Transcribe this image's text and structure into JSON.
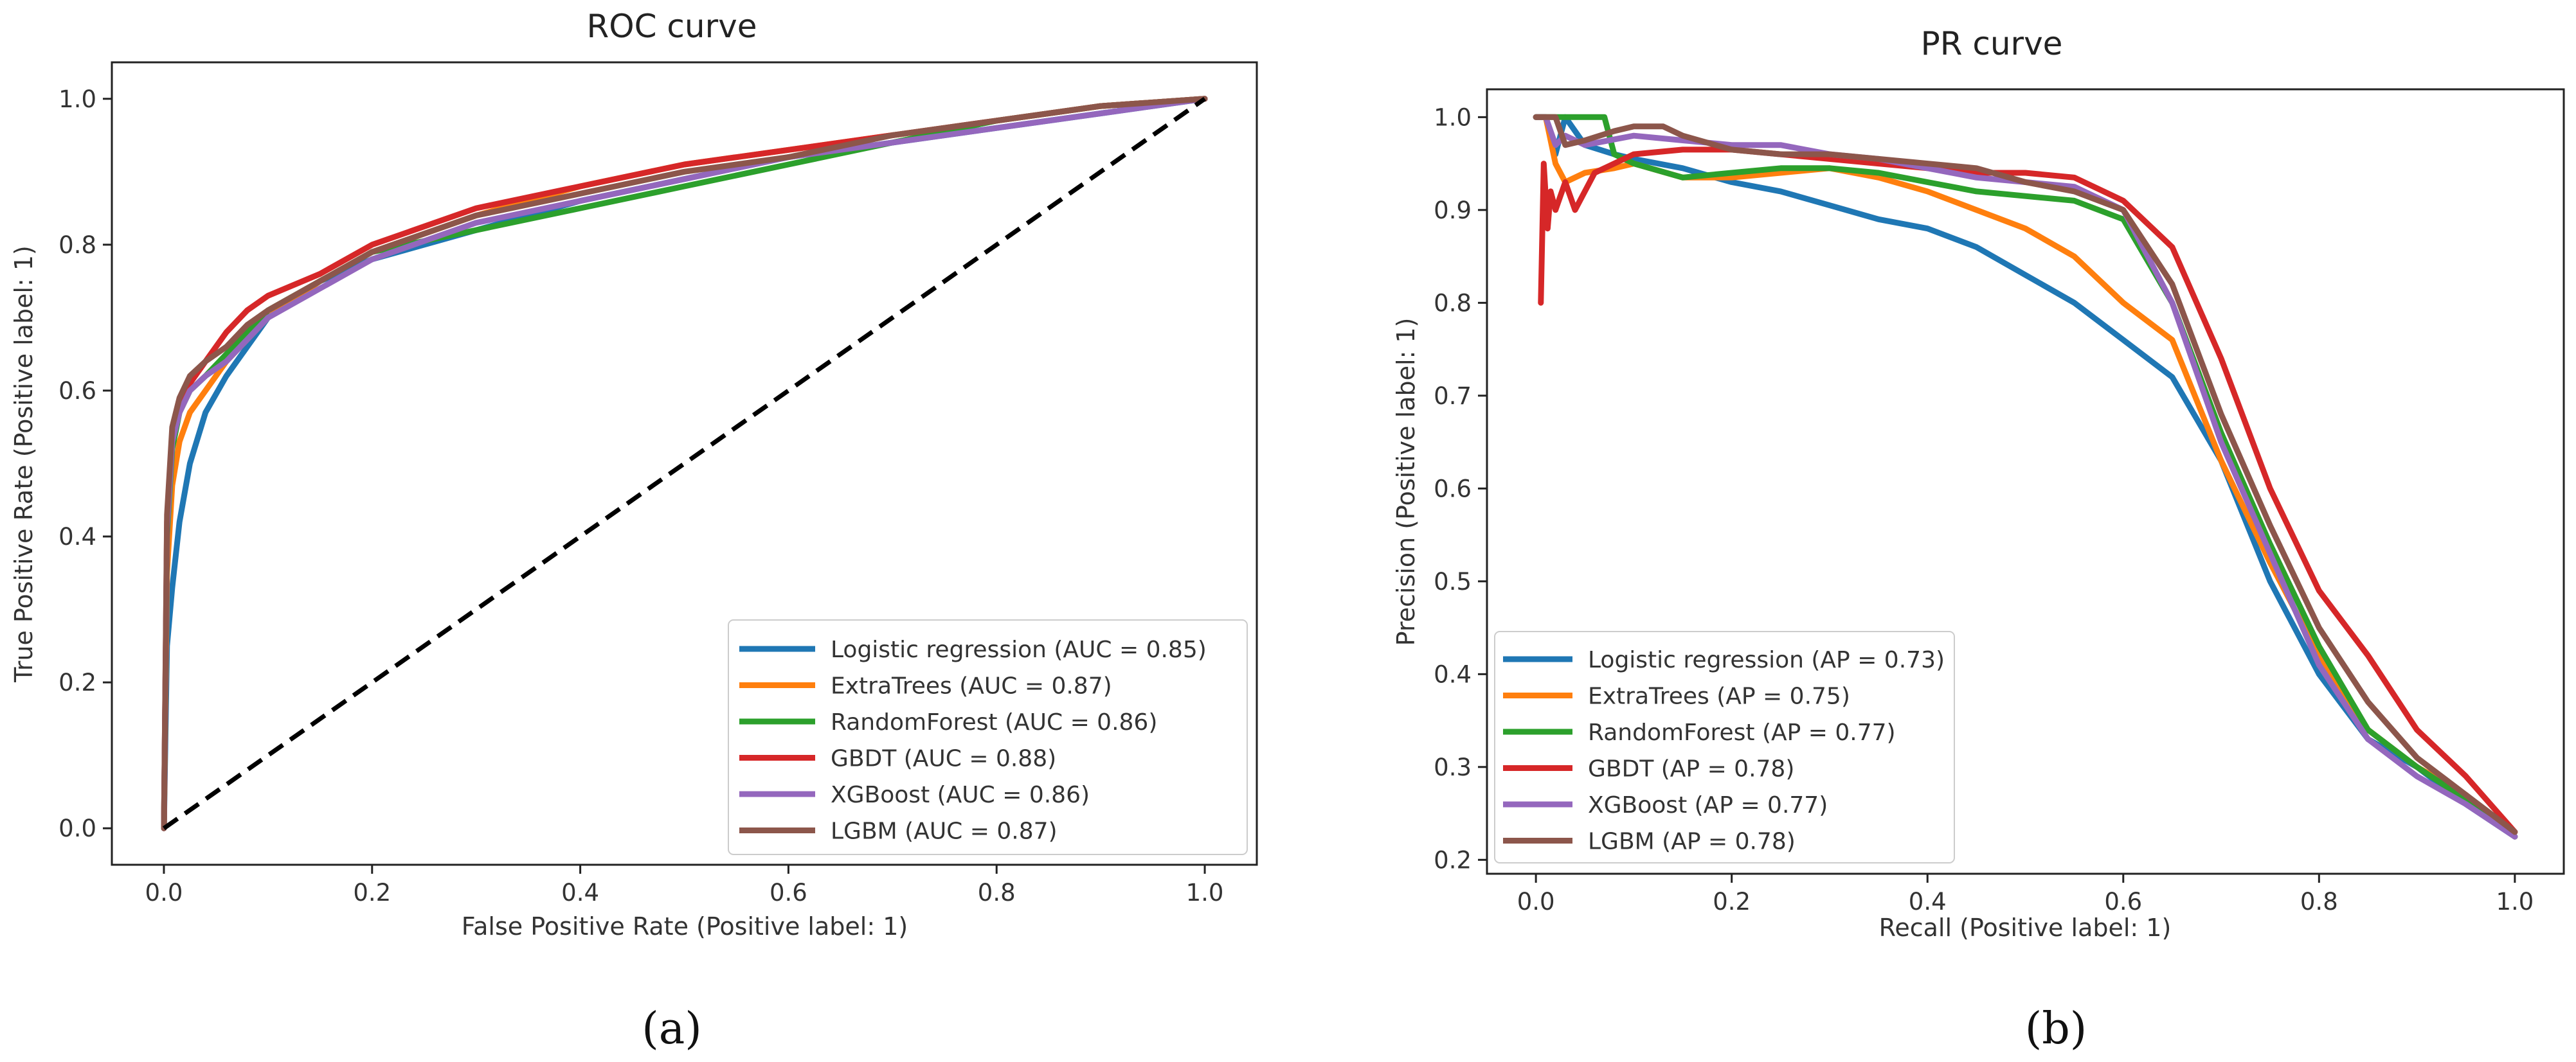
{
  "chart_data": [
    {
      "id": "roc",
      "type": "line",
      "title": "ROC curve",
      "xlabel": "False Positive Rate (Positive label: 1)",
      "ylabel": "True Positive Rate (Positive label: 1)",
      "xlim": [
        -0.05,
        1.05
      ],
      "ylim": [
        -0.05,
        1.05
      ],
      "xticks": [
        0.0,
        0.2,
        0.4,
        0.6,
        0.8,
        1.0
      ],
      "yticks": [
        0.0,
        0.2,
        0.4,
        0.6,
        0.8,
        1.0
      ],
      "xtick_labels": [
        "0.0",
        "0.2",
        "0.4",
        "0.6",
        "0.8",
        "1.0"
      ],
      "ytick_labels": [
        "0.0",
        "0.2",
        "0.4",
        "0.6",
        "0.8",
        "1.0"
      ],
      "grid": false,
      "legend_position": "lower-right",
      "subfigure_label": "(a)",
      "reference_line": {
        "x": [
          0,
          1
        ],
        "y": [
          0,
          1
        ],
        "style": "dashed",
        "color": "#000000"
      },
      "series": [
        {
          "name": "Logistic regression (AUC = 0.85)",
          "color": "#1f77b4",
          "x": [
            0,
            0.003,
            0.008,
            0.015,
            0.025,
            0.04,
            0.06,
            0.08,
            0.1,
            0.15,
            0.2,
            0.3,
            0.4,
            0.5,
            0.6,
            0.7,
            0.8,
            0.9,
            1.0
          ],
          "y": [
            0,
            0.25,
            0.33,
            0.42,
            0.5,
            0.57,
            0.62,
            0.66,
            0.7,
            0.75,
            0.78,
            0.82,
            0.86,
            0.89,
            0.92,
            0.94,
            0.96,
            0.98,
            1.0
          ]
        },
        {
          "name": "ExtraTrees (AUC = 0.87)",
          "color": "#ff7f0e",
          "x": [
            0,
            0.003,
            0.008,
            0.015,
            0.025,
            0.04,
            0.06,
            0.08,
            0.1,
            0.15,
            0.2,
            0.3,
            0.4,
            0.5,
            0.6,
            0.7,
            0.8,
            0.9,
            1.0
          ],
          "y": [
            0,
            0.35,
            0.47,
            0.53,
            0.57,
            0.6,
            0.64,
            0.67,
            0.7,
            0.75,
            0.79,
            0.84,
            0.88,
            0.91,
            0.93,
            0.95,
            0.97,
            0.99,
            1.0
          ]
        },
        {
          "name": "RandomForest (AUC = 0.86)",
          "color": "#2ca02c",
          "x": [
            0,
            0.003,
            0.008,
            0.015,
            0.025,
            0.04,
            0.06,
            0.08,
            0.1,
            0.15,
            0.2,
            0.3,
            0.4,
            0.5,
            0.6,
            0.7,
            0.8,
            0.9,
            1.0
          ],
          "y": [
            0,
            0.4,
            0.52,
            0.57,
            0.6,
            0.62,
            0.65,
            0.68,
            0.71,
            0.75,
            0.79,
            0.82,
            0.85,
            0.88,
            0.91,
            0.94,
            0.97,
            0.99,
            1.0
          ]
        },
        {
          "name": "GBDT (AUC = 0.88)",
          "color": "#d62728",
          "x": [
            0,
            0.003,
            0.008,
            0.015,
            0.025,
            0.04,
            0.06,
            0.08,
            0.1,
            0.15,
            0.2,
            0.3,
            0.4,
            0.5,
            0.6,
            0.7,
            0.8,
            0.9,
            1.0
          ],
          "y": [
            0,
            0.42,
            0.54,
            0.58,
            0.61,
            0.64,
            0.68,
            0.71,
            0.73,
            0.76,
            0.8,
            0.85,
            0.88,
            0.91,
            0.93,
            0.95,
            0.97,
            0.99,
            1.0
          ]
        },
        {
          "name": "XGBoost (AUC = 0.86)",
          "color": "#9467bd",
          "x": [
            0,
            0.003,
            0.008,
            0.015,
            0.025,
            0.04,
            0.06,
            0.08,
            0.1,
            0.15,
            0.2,
            0.3,
            0.4,
            0.5,
            0.6,
            0.7,
            0.8,
            0.9,
            1.0
          ],
          "y": [
            0,
            0.41,
            0.53,
            0.57,
            0.6,
            0.62,
            0.64,
            0.67,
            0.7,
            0.74,
            0.78,
            0.83,
            0.86,
            0.89,
            0.92,
            0.94,
            0.96,
            0.98,
            1.0
          ]
        },
        {
          "name": "LGBM (AUC = 0.87)",
          "color": "#8c564b",
          "x": [
            0,
            0.003,
            0.008,
            0.015,
            0.025,
            0.04,
            0.06,
            0.08,
            0.1,
            0.15,
            0.2,
            0.3,
            0.4,
            0.5,
            0.6,
            0.7,
            0.8,
            0.9,
            1.0
          ],
          "y": [
            0,
            0.43,
            0.55,
            0.59,
            0.62,
            0.64,
            0.66,
            0.69,
            0.71,
            0.75,
            0.79,
            0.84,
            0.87,
            0.9,
            0.92,
            0.95,
            0.97,
            0.99,
            1.0
          ]
        }
      ]
    },
    {
      "id": "pr",
      "type": "line",
      "title": "PR curve",
      "xlabel": "Recall (Positive label: 1)",
      "ylabel": "Precision (Positive label: 1)",
      "xlim": [
        -0.05,
        1.05
      ],
      "ylim": [
        0.185,
        1.03
      ],
      "xticks": [
        0.0,
        0.2,
        0.4,
        0.6,
        0.8,
        1.0
      ],
      "yticks": [
        0.2,
        0.3,
        0.4,
        0.5,
        0.6,
        0.7,
        0.8,
        0.9,
        1.0
      ],
      "xtick_labels": [
        "0.0",
        "0.2",
        "0.4",
        "0.6",
        "0.8",
        "1.0"
      ],
      "ytick_labels": [
        "0.2",
        "0.3",
        "0.4",
        "0.5",
        "0.6",
        "0.7",
        "0.8",
        "0.9",
        "1.0"
      ],
      "grid": false,
      "legend_position": "lower-left",
      "subfigure_label": "(b)",
      "series": [
        {
          "name": "Logistic regression (AP = 0.73)",
          "color": "#1f77b4",
          "x": [
            0,
            0.01,
            0.02,
            0.03,
            0.05,
            0.08,
            0.1,
            0.15,
            0.2,
            0.25,
            0.3,
            0.35,
            0.4,
            0.45,
            0.5,
            0.55,
            0.6,
            0.65,
            0.7,
            0.75,
            0.8,
            0.85,
            0.9,
            0.95,
            1.0
          ],
          "y": [
            1.0,
            1.0,
            0.96,
            1.0,
            0.97,
            0.96,
            0.955,
            0.945,
            0.93,
            0.92,
            0.905,
            0.89,
            0.88,
            0.86,
            0.83,
            0.8,
            0.76,
            0.72,
            0.63,
            0.5,
            0.4,
            0.33,
            0.3,
            0.26,
            0.225
          ]
        },
        {
          "name": "ExtraTrees (AP = 0.75)",
          "color": "#ff7f0e",
          "x": [
            0,
            0.01,
            0.02,
            0.03,
            0.05,
            0.08,
            0.1,
            0.15,
            0.2,
            0.25,
            0.3,
            0.35,
            0.4,
            0.45,
            0.5,
            0.55,
            0.6,
            0.65,
            0.7,
            0.75,
            0.8,
            0.85,
            0.9,
            0.95,
            1.0
          ],
          "y": [
            1.0,
            1.0,
            0.95,
            0.93,
            0.94,
            0.945,
            0.95,
            0.935,
            0.935,
            0.94,
            0.945,
            0.935,
            0.92,
            0.9,
            0.88,
            0.85,
            0.8,
            0.76,
            0.63,
            0.52,
            0.42,
            0.34,
            0.3,
            0.27,
            0.225
          ]
        },
        {
          "name": "RandomForest (AP = 0.77)",
          "color": "#2ca02c",
          "x": [
            0,
            0.01,
            0.02,
            0.03,
            0.05,
            0.07,
            0.08,
            0.1,
            0.15,
            0.2,
            0.25,
            0.3,
            0.35,
            0.4,
            0.45,
            0.5,
            0.55,
            0.6,
            0.65,
            0.7,
            0.75,
            0.8,
            0.85,
            0.9,
            0.95,
            1.0
          ],
          "y": [
            1.0,
            1.0,
            1.0,
            1.0,
            1.0,
            1.0,
            0.96,
            0.95,
            0.935,
            0.94,
            0.945,
            0.945,
            0.94,
            0.93,
            0.92,
            0.915,
            0.91,
            0.89,
            0.8,
            0.66,
            0.54,
            0.43,
            0.34,
            0.3,
            0.265,
            0.225
          ]
        },
        {
          "name": "GBDT (AP = 0.78)",
          "color": "#d62728",
          "x": [
            0.005,
            0.008,
            0.012,
            0.015,
            0.02,
            0.03,
            0.04,
            0.06,
            0.08,
            0.1,
            0.15,
            0.2,
            0.25,
            0.3,
            0.35,
            0.4,
            0.45,
            0.5,
            0.55,
            0.6,
            0.65,
            0.7,
            0.75,
            0.8,
            0.85,
            0.9,
            0.95,
            1.0
          ],
          "y": [
            0.8,
            0.95,
            0.88,
            0.92,
            0.9,
            0.93,
            0.9,
            0.94,
            0.95,
            0.96,
            0.965,
            0.965,
            0.96,
            0.955,
            0.95,
            0.945,
            0.94,
            0.94,
            0.935,
            0.91,
            0.86,
            0.74,
            0.6,
            0.49,
            0.42,
            0.34,
            0.29,
            0.23
          ]
        },
        {
          "name": "XGBoost (AP = 0.77)",
          "color": "#9467bd",
          "x": [
            0,
            0.01,
            0.02,
            0.03,
            0.05,
            0.1,
            0.15,
            0.2,
            0.25,
            0.3,
            0.35,
            0.4,
            0.45,
            0.5,
            0.55,
            0.6,
            0.65,
            0.7,
            0.75,
            0.8,
            0.85,
            0.9,
            0.95,
            1.0
          ],
          "y": [
            1.0,
            1.0,
            0.97,
            0.98,
            0.97,
            0.98,
            0.975,
            0.97,
            0.97,
            0.96,
            0.955,
            0.945,
            0.935,
            0.93,
            0.925,
            0.9,
            0.8,
            0.65,
            0.53,
            0.41,
            0.33,
            0.29,
            0.26,
            0.225
          ]
        },
        {
          "name": "LGBM (AP = 0.78)",
          "color": "#8c564b",
          "x": [
            0,
            0.01,
            0.02,
            0.03,
            0.05,
            0.08,
            0.1,
            0.13,
            0.15,
            0.2,
            0.25,
            0.3,
            0.35,
            0.4,
            0.45,
            0.5,
            0.55,
            0.6,
            0.65,
            0.7,
            0.75,
            0.8,
            0.85,
            0.9,
            0.95,
            1.0
          ],
          "y": [
            1.0,
            1.0,
            1.0,
            0.97,
            0.975,
            0.985,
            0.99,
            0.99,
            0.98,
            0.965,
            0.96,
            0.96,
            0.955,
            0.95,
            0.945,
            0.93,
            0.92,
            0.9,
            0.82,
            0.68,
            0.56,
            0.45,
            0.37,
            0.31,
            0.27,
            0.23
          ]
        }
      ]
    }
  ]
}
